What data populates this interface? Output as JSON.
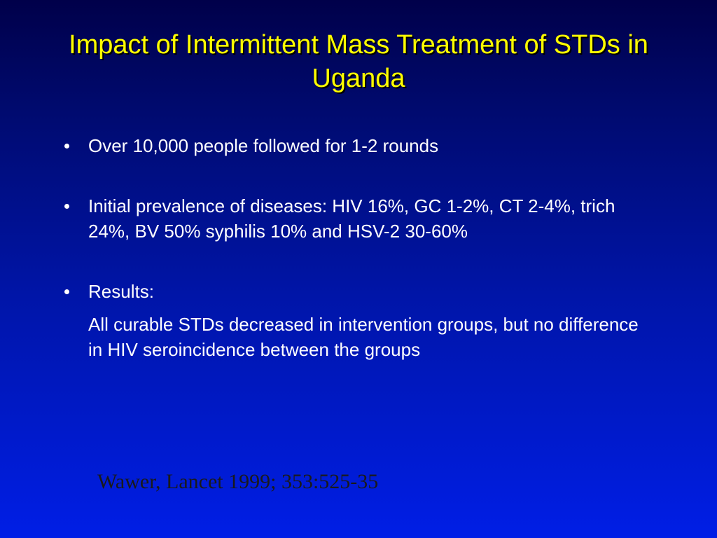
{
  "slide": {
    "title": "Impact of Intermittent Mass Treatment of STDs in Uganda",
    "bullets": [
      "Over 10,000 people followed for 1-2 rounds",
      "Initial prevalence of diseases: HIV 16%, GC 1-2%, CT 2-4%, trich 24%, BV 50% syphilis 10% and HSV-2 30-60%",
      "Results:"
    ],
    "results_detail": "All curable STDs decreased in intervention groups, but no difference in HIV seroincidence between the groups",
    "citation": "Wawer, Lancet 1999; 353:525-35"
  },
  "colors": {
    "title": "#ffff00",
    "body_text": "#ffffff",
    "citation": "#1a1a1a",
    "background_top": "#00004a",
    "background_bottom": "#001ee6"
  }
}
